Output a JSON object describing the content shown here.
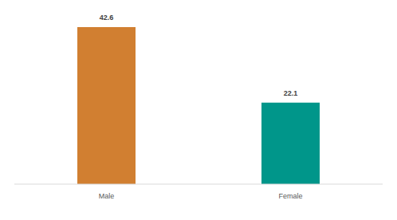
{
  "chart_data": {
    "type": "bar",
    "categories": [
      "Male",
      "Female"
    ],
    "values": [
      42.6,
      22.1
    ],
    "colors": [
      "#d17f31",
      "#00968a"
    ],
    "data_labels": true,
    "tick_labels": "x",
    "grid": false
  }
}
